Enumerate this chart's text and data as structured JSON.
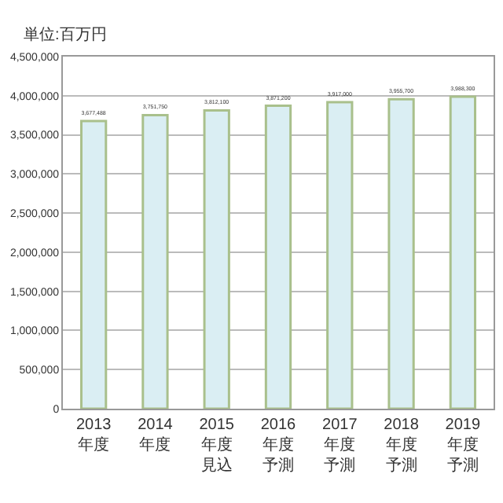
{
  "chart_data": {
    "type": "bar",
    "ylabel": "単位:百万円",
    "categories": [
      "2013年度",
      "2014年度",
      "2015年度見込",
      "2016年度予測",
      "2017年度予測",
      "2018年度予測",
      "2019年度予測"
    ],
    "values": [
      3677488,
      3751750,
      3812100,
      3871200,
      3917000,
      3955700,
      3988300
    ],
    "value_labels": [
      "3,677,488",
      "3,751,750",
      "3,812,100",
      "3,871,200",
      "3,917,000",
      "3,955,700",
      "3,988,300"
    ],
    "color": "#daeef3",
    "ylim": [
      0,
      4500000
    ],
    "yticks": [
      {
        "value": 0,
        "label": "0"
      },
      {
        "value": 500000,
        "label": "500,000"
      },
      {
        "value": 1000000,
        "label": "1,000,000"
      },
      {
        "value": 1500000,
        "label": "1,500,000"
      },
      {
        "value": 2000000,
        "label": "2,000,000"
      },
      {
        "value": 2500000,
        "label": "2,500,000"
      },
      {
        "value": 3000000,
        "label": "3,000,000"
      },
      {
        "value": 3500000,
        "label": "3,500,000"
      },
      {
        "value": 4000000,
        "label": "4,000,000"
      },
      {
        "value": 4500000,
        "label": "4,500,000"
      }
    ],
    "grid": "y"
  }
}
